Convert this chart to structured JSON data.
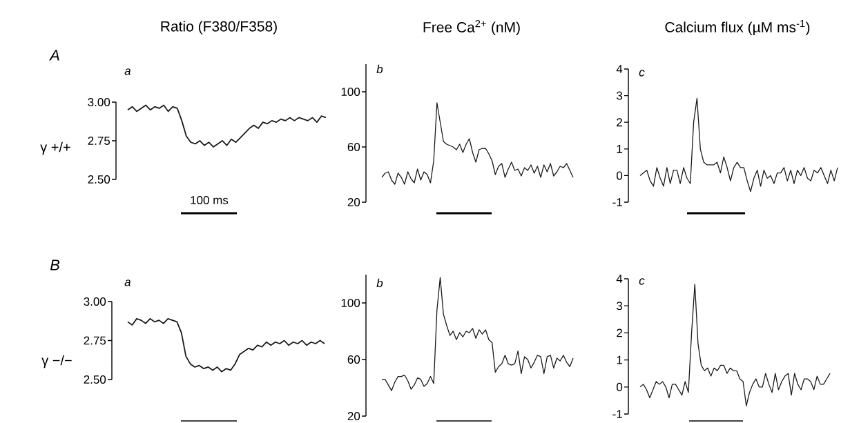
{
  "chart_data": [
    {
      "type": "line",
      "title": "a",
      "ylabel": "Ratio (F380/F358)",
      "xlabel": "100 ms",
      "annotations": [
        "A",
        "γ +/+"
      ],
      "tick_labels": "y",
      "ylim": [
        2.5,
        3.0
      ],
      "yticks": [
        {
          "value": 2.5,
          "label": "2.50"
        },
        {
          "value": 2.75,
          "label": "2.75"
        },
        {
          "value": 3.0,
          "label": "3.00"
        }
      ],
      "color": "#1a1a1a",
      "categories": [
        null,
        null,
        null,
        null,
        null,
        null,
        null,
        null,
        null,
        null,
        null,
        null,
        null,
        null,
        null,
        null,
        null,
        null,
        null,
        null,
        null,
        null,
        null,
        null,
        null,
        null,
        null,
        null,
        null,
        null,
        null,
        null,
        null,
        null,
        null,
        null,
        null,
        null,
        null,
        null,
        null,
        null,
        null,
        null,
        null
      ],
      "values": [
        2.95,
        2.97,
        2.94,
        2.96,
        2.98,
        2.95,
        2.97,
        2.96,
        2.98,
        2.94,
        2.97,
        2.96,
        2.88,
        2.78,
        2.74,
        2.73,
        2.75,
        2.72,
        2.74,
        2.71,
        2.73,
        2.75,
        2.72,
        2.76,
        2.74,
        2.77,
        2.8,
        2.83,
        2.85,
        2.83,
        2.87,
        2.86,
        2.88,
        2.87,
        2.89,
        2.88,
        2.9,
        2.88,
        2.9,
        2.89,
        2.88,
        2.9,
        2.87,
        2.91,
        2.9
      ]
    },
    {
      "type": "line",
      "title": "b",
      "ylabel": "Free Ca$^{2+}$ (nM)",
      "tick_labels": "y",
      "ylim": [
        20,
        120
      ],
      "yticks": [
        20,
        60,
        100
      ],
      "color": "#1a1a1a",
      "categories": [
        null,
        null,
        null,
        null,
        null,
        null,
        null,
        null,
        null,
        null,
        null,
        null,
        null,
        null,
        null,
        null,
        null,
        null,
        null,
        null,
        null,
        null,
        null,
        null,
        null,
        null,
        null,
        null,
        null,
        null,
        null,
        null,
        null,
        null,
        null,
        null,
        null,
        null,
        null,
        null,
        null,
        null,
        null,
        null,
        null,
        null,
        null,
        null,
        null,
        null,
        null,
        null,
        null,
        null,
        null,
        null,
        null,
        null,
        null,
        null
      ],
      "values": [
        38,
        41,
        42,
        36,
        33,
        41,
        38,
        33,
        42,
        37,
        34,
        44,
        36,
        42,
        40,
        34,
        50,
        92,
        78,
        64,
        62,
        61,
        60,
        58,
        62,
        56,
        62,
        66,
        56,
        49,
        58,
        59,
        59,
        55,
        50,
        40,
        46,
        48,
        38,
        44,
        49,
        43,
        44,
        39,
        45,
        43,
        47,
        41,
        46,
        38,
        47,
        42,
        48,
        39,
        42,
        46,
        45,
        48,
        43,
        38
      ]
    },
    {
      "type": "line",
      "title": "c",
      "ylabel": "Calcium flux (µM ms$^{-1}$)",
      "tick_labels": "y",
      "ylim": [
        -1,
        4
      ],
      "yticks": [
        -1,
        0,
        1,
        2,
        3,
        4
      ],
      "color": "#1a1a1a",
      "categories": [
        null,
        null,
        null,
        null,
        null,
        null,
        null,
        null,
        null,
        null,
        null,
        null,
        null,
        null,
        null,
        null,
        null,
        null,
        null,
        null,
        null,
        null,
        null,
        null,
        null,
        null,
        null,
        null,
        null,
        null,
        null,
        null,
        null,
        null,
        null,
        null,
        null,
        null,
        null,
        null,
        null,
        null,
        null,
        null,
        null,
        null,
        null,
        null,
        null,
        null,
        null,
        null,
        null,
        null,
        null,
        null,
        null,
        null,
        null,
        null
      ],
      "values": [
        0,
        0.1,
        0.2,
        -0.2,
        -0.4,
        0.3,
        -0.1,
        -0.4,
        0.3,
        -0.3,
        0.2,
        0.2,
        -0.3,
        0.3,
        -0.1,
        -0.3,
        2.0,
        2.9,
        1.0,
        0.5,
        0.4,
        0.4,
        0.4,
        0.5,
        0.1,
        0.7,
        0.3,
        -0.2,
        0.3,
        0.5,
        0.3,
        0.3,
        -0.2,
        -0.6,
        -0.1,
        0.2,
        -0.4,
        0.2,
        -0.1,
        0,
        -0.3,
        0.1,
        0.1,
        0.3,
        -0.2,
        0.2,
        -0.3,
        0.2,
        0,
        0.3,
        -0.1,
        -0.2,
        0.2,
        0.1,
        0.3,
        0,
        -0.3,
        0.2,
        -0.2,
        0.3
      ]
    },
    {
      "type": "line",
      "title": "a",
      "annotations": [
        "B",
        "γ −/−"
      ],
      "tick_labels": "y",
      "ylim": [
        2.5,
        3.0
      ],
      "yticks": [
        {
          "value": 2.5,
          "label": "2.50"
        },
        {
          "value": 2.75,
          "label": "2.75"
        },
        {
          "value": 3.0,
          "label": "3.00"
        }
      ],
      "color": "#1a1a1a",
      "categories": [
        null,
        null,
        null,
        null,
        null,
        null,
        null,
        null,
        null,
        null,
        null,
        null,
        null,
        null,
        null,
        null,
        null,
        null,
        null,
        null,
        null,
        null,
        null,
        null,
        null,
        null,
        null,
        null,
        null,
        null,
        null,
        null,
        null,
        null,
        null,
        null,
        null,
        null,
        null,
        null,
        null,
        null,
        null,
        null,
        null
      ],
      "values": [
        2.87,
        2.85,
        2.89,
        2.88,
        2.86,
        2.89,
        2.87,
        2.88,
        2.86,
        2.89,
        2.88,
        2.87,
        2.8,
        2.65,
        2.6,
        2.58,
        2.59,
        2.57,
        2.58,
        2.56,
        2.58,
        2.55,
        2.57,
        2.56,
        2.6,
        2.66,
        2.68,
        2.7,
        2.69,
        2.72,
        2.71,
        2.74,
        2.72,
        2.74,
        2.73,
        2.75,
        2.72,
        2.74,
        2.73,
        2.75,
        2.72,
        2.74,
        2.73,
        2.75,
        2.73
      ]
    },
    {
      "type": "line",
      "title": "b",
      "tick_labels": "y",
      "ylim": [
        20,
        120
      ],
      "yticks": [
        20,
        60,
        100
      ],
      "color": "#1a1a1a",
      "categories": [
        null,
        null,
        null,
        null,
        null,
        null,
        null,
        null,
        null,
        null,
        null,
        null,
        null,
        null,
        null,
        null,
        null,
        null,
        null,
        null,
        null,
        null,
        null,
        null,
        null,
        null,
        null,
        null,
        null,
        null,
        null,
        null,
        null,
        null,
        null,
        null,
        null,
        null,
        null,
        null,
        null,
        null,
        null,
        null,
        null,
        null,
        null,
        null,
        null,
        null,
        null,
        null,
        null,
        null,
        null,
        null,
        null,
        null,
        null,
        null
      ],
      "values": [
        46,
        46,
        42,
        38,
        44,
        48,
        48,
        49,
        45,
        39,
        42,
        47,
        46,
        41,
        43,
        48,
        43,
        95,
        118,
        92,
        84,
        77,
        80,
        74,
        79,
        76,
        80,
        79,
        82,
        75,
        81,
        78,
        81,
        74,
        72,
        51,
        55,
        57,
        63,
        57,
        56,
        57,
        66,
        50,
        62,
        60,
        54,
        58,
        63,
        62,
        50,
        62,
        63,
        54,
        61,
        59,
        63,
        58,
        55,
        61
      ]
    },
    {
      "type": "line",
      "title": "c",
      "tick_labels": "y",
      "ylim": [
        -1,
        4
      ],
      "yticks": [
        -1,
        0,
        1,
        2,
        3,
        4
      ],
      "color": "#1a1a1a",
      "categories": [
        null,
        null,
        null,
        null,
        null,
        null,
        null,
        null,
        null,
        null,
        null,
        null,
        null,
        null,
        null,
        null,
        null,
        null,
        null,
        null,
        null,
        null,
        null,
        null,
        null,
        null,
        null,
        null,
        null,
        null,
        null,
        null,
        null,
        null,
        null,
        null,
        null,
        null,
        null,
        null,
        null,
        null,
        null,
        null,
        null,
        null,
        null,
        null,
        null,
        null,
        null,
        null,
        null,
        null,
        null,
        null,
        null,
        null,
        null,
        null
      ],
      "values": [
        0,
        0.1,
        -0.1,
        -0.4,
        -0.1,
        0.2,
        0.1,
        0.2,
        0,
        -0.4,
        0.1,
        0.1,
        -0.1,
        -0.3,
        0.2,
        -0.2,
        2.0,
        3.8,
        1.6,
        0.8,
        0.6,
        0.7,
        0.4,
        0.7,
        0.6,
        0.8,
        0.8,
        0.5,
        0.7,
        0.6,
        0.6,
        0.3,
        0.2,
        -0.7,
        -0.2,
        0.1,
        0.3,
        0,
        0,
        0.5,
        0.1,
        -0.2,
        0.5,
        -0.1,
        0.2,
        0.4,
        0.5,
        -0.3,
        0.5,
        0.1,
        -0.1,
        0.3,
        0.3,
        0.2,
        -0.1,
        0.4,
        0.1,
        0.1,
        0.3,
        0.5
      ]
    }
  ]
}
